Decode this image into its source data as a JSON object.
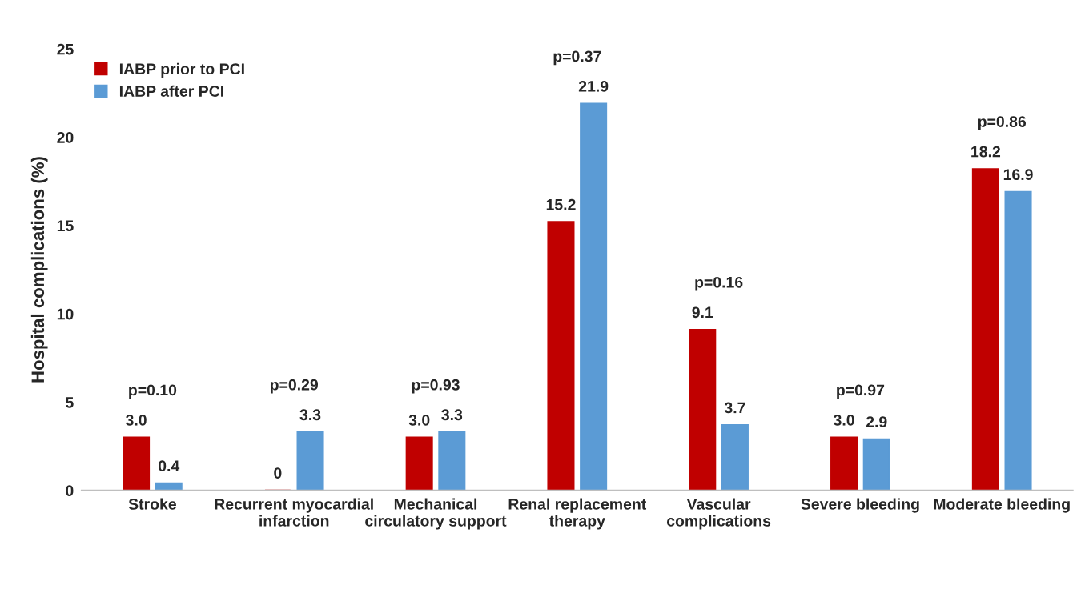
{
  "chart_data": {
    "type": "bar",
    "ylabel": "Hospital complications (%)",
    "categories": [
      "Stroke",
      "Recurrent myocardial\ninfarction",
      "Mechanical\ncirculatory support",
      "Renal replacement\ntherapy",
      "Vascular\ncomplications",
      "Severe bleeding",
      "Moderate bleeding"
    ],
    "series": [
      {
        "name": "IABP prior to PCI",
        "color": "#c00000",
        "values": [
          3.0,
          0,
          3.0,
          15.2,
          9.1,
          3.0,
          18.2
        ],
        "value_labels": [
          "3.0",
          "0",
          "3.0",
          "15.2",
          "9.1",
          "3.0",
          "18.2"
        ]
      },
      {
        "name": "IABP after PCI",
        "color": "#5b9bd5",
        "values": [
          0.4,
          3.3,
          3.3,
          21.9,
          3.7,
          2.9,
          16.9
        ],
        "value_labels": [
          "0.4",
          "3.3",
          "3.3",
          "21.9",
          "3.7",
          "2.9",
          "16.9"
        ]
      }
    ],
    "annotations": [
      "p=0.10",
      "p=0.29",
      "p=0.93",
      "p=0.37",
      "p=0.16",
      "p=0.97",
      "p=0.86"
    ],
    "ylim": [
      0,
      25
    ],
    "yticks": [
      0,
      5,
      10,
      15,
      20,
      25
    ],
    "grid": false,
    "legend": "top left"
  }
}
